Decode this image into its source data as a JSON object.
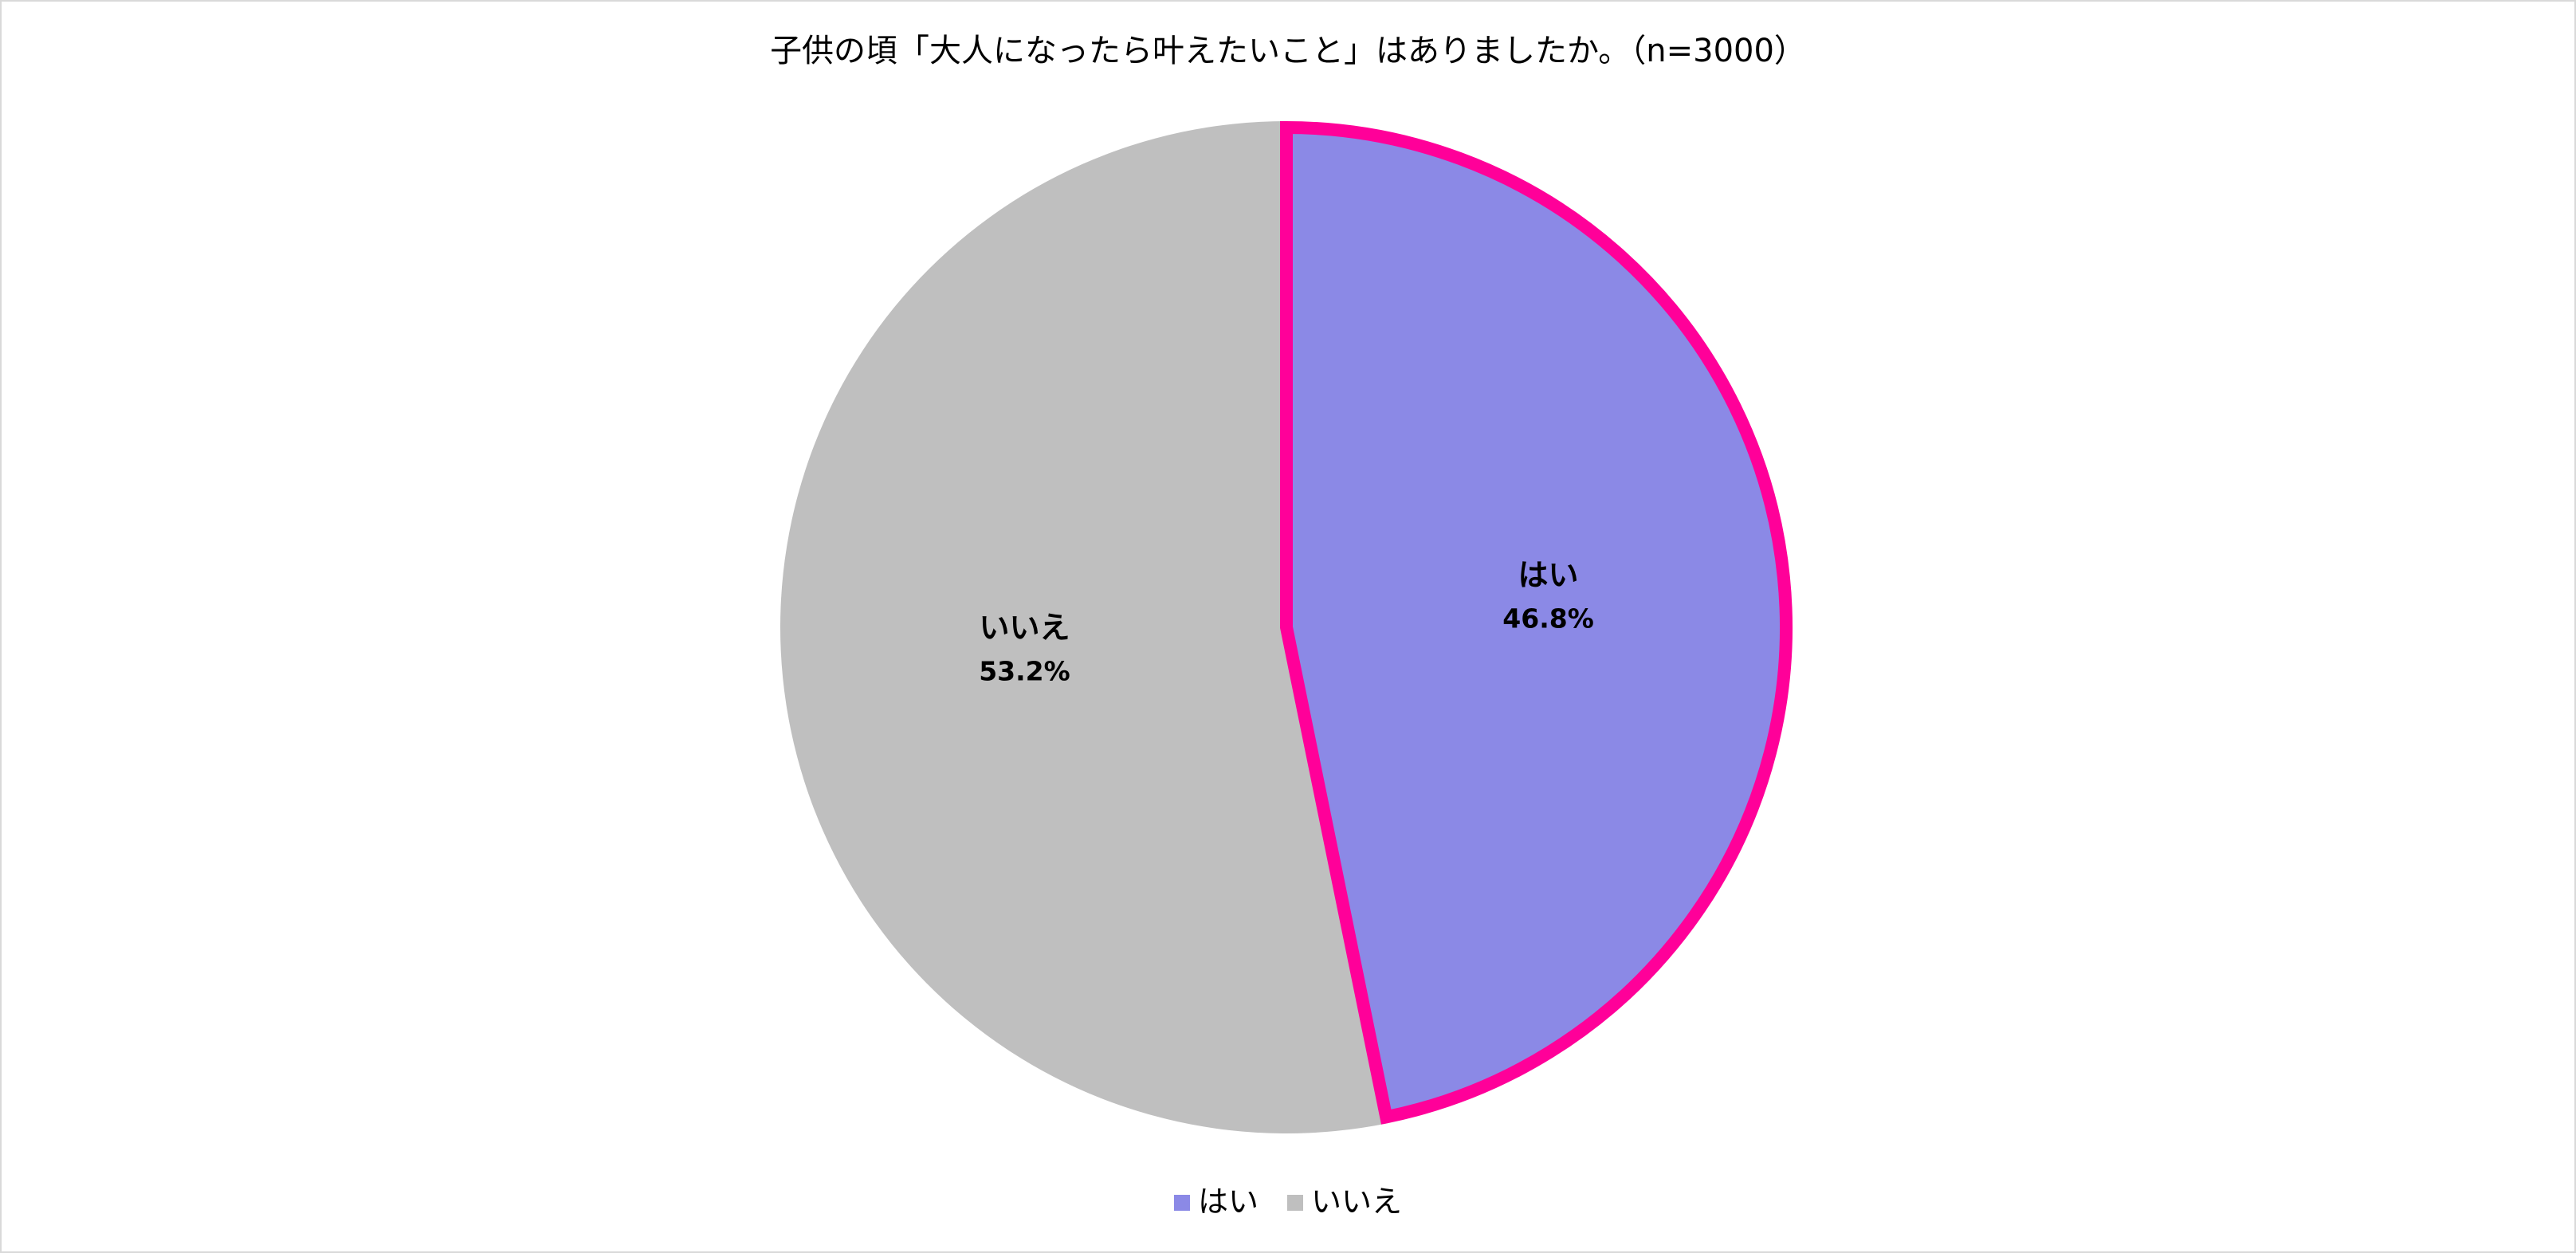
{
  "chart_data": {
    "type": "pie",
    "title": "子供の頃「大人になったら叶えたいこと」はありましたか。（n=3000）",
    "categories": [
      "はい",
      "いいえ"
    ],
    "values": [
      46.8,
      53.2
    ],
    "value_labels": [
      "46.8%",
      "53.2%"
    ],
    "colors": [
      "#8b89e6",
      "#bfbfbf"
    ],
    "edgecolors": [
      "#ff0099",
      null
    ],
    "legend": "bottom"
  }
}
